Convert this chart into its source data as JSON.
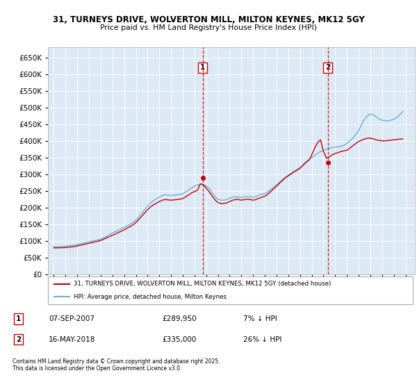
{
  "title": "31, TURNEYS DRIVE, WOLVERTON MILL, MILTON KEYNES, MK12 5GY",
  "subtitle": "Price paid vs. HM Land Registry's House Price Index (HPI)",
  "ylim": [
    0,
    680000
  ],
  "yticks": [
    0,
    50000,
    100000,
    150000,
    200000,
    250000,
    300000,
    350000,
    400000,
    450000,
    500000,
    550000,
    600000,
    650000
  ],
  "xlim_start": 1994.5,
  "xlim_end": 2025.8,
  "background_color": "#dce9f5",
  "sale1_year": 2007.69,
  "sale2_year": 2018.37,
  "legend_label_red": "31, TURNEYS DRIVE, WOLVERTON MILL, MILTON KEYNES, MK12 5GY (detached house)",
  "legend_label_blue": "HPI: Average price, detached house, Milton Keynes",
  "annotation1_date": "07-SEP-2007",
  "annotation1_price": "£289,950",
  "annotation1_note": "7% ↓ HPI",
  "annotation2_date": "16-MAY-2018",
  "annotation2_price": "£335,000",
  "annotation2_note": "26% ↓ HPI",
  "footer": "Contains HM Land Registry data © Crown copyright and database right 2025.\nThis data is licensed under the Open Government Licence v3.0.",
  "hpi_years": [
    1995.0,
    1995.25,
    1995.5,
    1995.75,
    1996.0,
    1996.25,
    1996.5,
    1996.75,
    1997.0,
    1997.25,
    1997.5,
    1997.75,
    1998.0,
    1998.25,
    1998.5,
    1998.75,
    1999.0,
    1999.25,
    1999.5,
    1999.75,
    2000.0,
    2000.25,
    2000.5,
    2000.75,
    2001.0,
    2001.25,
    2001.5,
    2001.75,
    2002.0,
    2002.25,
    2002.5,
    2002.75,
    2003.0,
    2003.25,
    2003.5,
    2003.75,
    2004.0,
    2004.25,
    2004.5,
    2004.75,
    2005.0,
    2005.25,
    2005.5,
    2005.75,
    2006.0,
    2006.25,
    2006.5,
    2006.75,
    2007.0,
    2007.25,
    2007.5,
    2007.75,
    2008.0,
    2008.25,
    2008.5,
    2008.75,
    2009.0,
    2009.25,
    2009.5,
    2009.75,
    2010.0,
    2010.25,
    2010.5,
    2010.75,
    2011.0,
    2011.25,
    2011.5,
    2011.75,
    2012.0,
    2012.25,
    2012.5,
    2012.75,
    2013.0,
    2013.25,
    2013.5,
    2013.75,
    2014.0,
    2014.25,
    2014.5,
    2014.75,
    2015.0,
    2015.25,
    2015.5,
    2015.75,
    2016.0,
    2016.25,
    2016.5,
    2016.75,
    2017.0,
    2017.25,
    2017.5,
    2017.75,
    2018.0,
    2018.25,
    2018.5,
    2018.75,
    2019.0,
    2019.25,
    2019.5,
    2019.75,
    2020.0,
    2020.25,
    2020.5,
    2020.75,
    2021.0,
    2021.25,
    2021.5,
    2021.75,
    2022.0,
    2022.25,
    2022.5,
    2022.75,
    2023.0,
    2023.25,
    2023.5,
    2023.75,
    2024.0,
    2024.25,
    2024.5,
    2024.75
  ],
  "hpi_values": [
    82000,
    82500,
    83000,
    83500,
    84000,
    85000,
    86000,
    87000,
    89000,
    91000,
    93000,
    95000,
    97000,
    99000,
    101000,
    103000,
    105000,
    109000,
    114000,
    119000,
    124000,
    128000,
    132000,
    136000,
    140000,
    145000,
    150000,
    155000,
    162000,
    172000,
    183000,
    194000,
    205000,
    214000,
    221000,
    226000,
    231000,
    236000,
    238000,
    237000,
    236000,
    237000,
    238000,
    239000,
    241000,
    247000,
    253000,
    259000,
    264000,
    268000,
    270000,
    268000,
    264000,
    257000,
    245000,
    233000,
    225000,
    222000,
    222000,
    224000,
    228000,
    231000,
    232000,
    231000,
    230000,
    232000,
    233000,
    232000,
    231000,
    233000,
    237000,
    240000,
    242000,
    247000,
    254000,
    261000,
    268000,
    276000,
    284000,
    291000,
    297000,
    303000,
    309000,
    314000,
    320000,
    328000,
    337000,
    343000,
    349000,
    356000,
    363000,
    368000,
    372000,
    375000,
    378000,
    380000,
    381000,
    382000,
    384000,
    387000,
    392000,
    400000,
    408000,
    418000,
    430000,
    450000,
    465000,
    475000,
    480000,
    478000,
    472000,
    465000,
    462000,
    460000,
    460000,
    462000,
    465000,
    470000,
    478000,
    488000
  ],
  "red_years": [
    1995.0,
    1995.25,
    1995.5,
    1995.75,
    1996.0,
    1996.25,
    1996.5,
    1996.75,
    1997.0,
    1997.25,
    1997.5,
    1997.75,
    1998.0,
    1998.25,
    1998.5,
    1998.75,
    1999.0,
    1999.25,
    1999.5,
    1999.75,
    2000.0,
    2000.25,
    2000.5,
    2000.75,
    2001.0,
    2001.25,
    2001.5,
    2001.75,
    2002.0,
    2002.25,
    2002.5,
    2002.75,
    2003.0,
    2003.25,
    2003.5,
    2003.75,
    2004.0,
    2004.25,
    2004.5,
    2004.75,
    2005.0,
    2005.25,
    2005.5,
    2005.75,
    2006.0,
    2006.25,
    2006.5,
    2006.75,
    2007.0,
    2007.25,
    2007.5,
    2007.75,
    2008.0,
    2008.25,
    2008.5,
    2008.75,
    2009.0,
    2009.25,
    2009.5,
    2009.75,
    2010.0,
    2010.25,
    2010.5,
    2010.75,
    2011.0,
    2011.25,
    2011.5,
    2011.75,
    2012.0,
    2012.25,
    2012.5,
    2012.75,
    2013.0,
    2013.25,
    2013.5,
    2013.75,
    2014.0,
    2014.25,
    2014.5,
    2014.75,
    2015.0,
    2015.25,
    2015.5,
    2015.75,
    2016.0,
    2016.25,
    2016.5,
    2016.75,
    2017.0,
    2017.25,
    2017.5,
    2017.75,
    2018.0,
    2018.25,
    2018.5,
    2018.75,
    2019.0,
    2019.25,
    2019.5,
    2019.75,
    2020.0,
    2020.25,
    2020.5,
    2020.75,
    2021.0,
    2021.25,
    2021.5,
    2021.75,
    2022.0,
    2022.25,
    2022.5,
    2022.75,
    2023.0,
    2023.25,
    2023.5,
    2023.75,
    2024.0,
    2024.25,
    2024.5,
    2024.75
  ],
  "red_values": [
    79000,
    79200,
    79400,
    79700,
    80000,
    81000,
    82000,
    83000,
    85000,
    87000,
    89000,
    91000,
    93000,
    95000,
    97000,
    99000,
    101000,
    105000,
    109000,
    113000,
    117000,
    121000,
    125000,
    129000,
    133000,
    138000,
    143000,
    148000,
    155000,
    164000,
    174000,
    184000,
    194000,
    202000,
    208000,
    213000,
    218000,
    222000,
    224000,
    223000,
    222000,
    223000,
    224000,
    225000,
    227000,
    232000,
    238000,
    244000,
    248000,
    252000,
    271000,
    269000,
    258000,
    247000,
    235000,
    223000,
    215000,
    212000,
    212000,
    214000,
    218000,
    222000,
    224000,
    224000,
    222000,
    224000,
    225000,
    224000,
    222000,
    224000,
    228000,
    231000,
    234000,
    240000,
    248000,
    256000,
    264000,
    273000,
    281000,
    289000,
    295000,
    301000,
    307000,
    312000,
    318000,
    326000,
    335000,
    342000,
    358000,
    378000,
    395000,
    403000,
    368000,
    348000,
    352000,
    358000,
    362000,
    365000,
    368000,
    370000,
    372000,
    378000,
    385000,
    392000,
    398000,
    402000,
    405000,
    408000,
    408000,
    406000,
    403000,
    401000,
    400000,
    400000,
    401000,
    402000,
    403000,
    404000,
    405000,
    406000
  ]
}
